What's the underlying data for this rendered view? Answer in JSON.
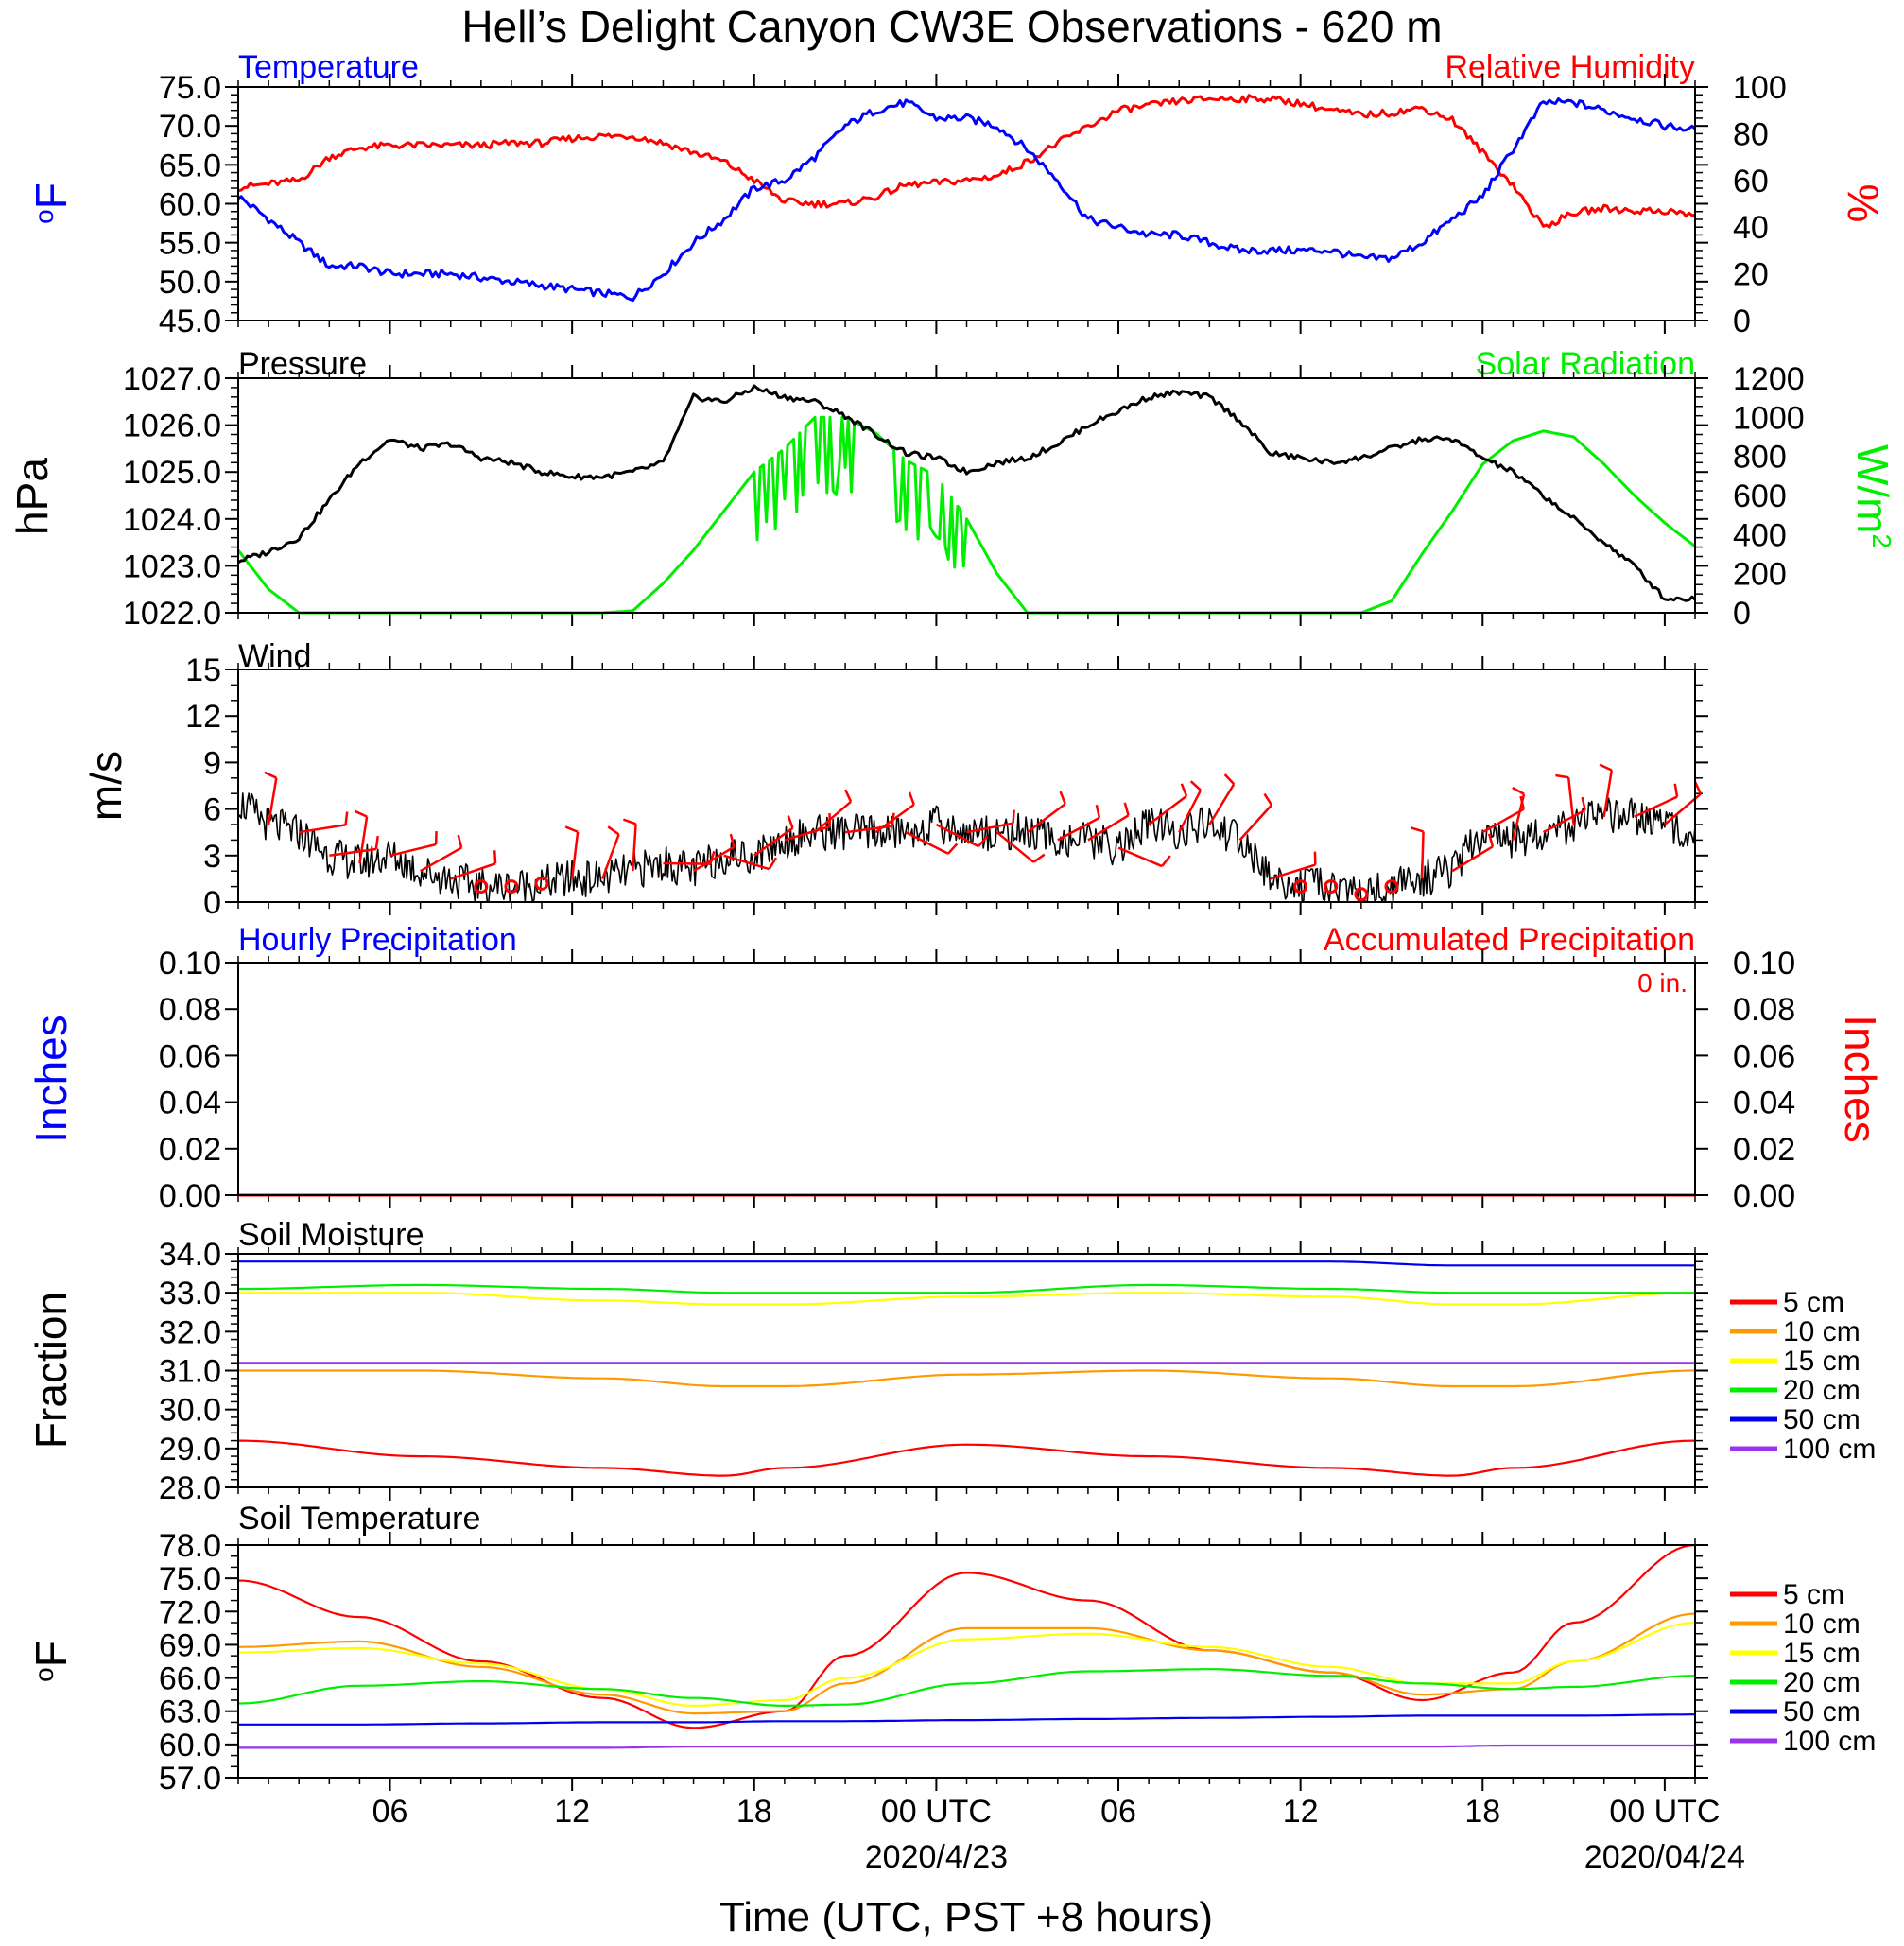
{
  "title": "Hell’s Delight Canyon CW3E Observations - 620 m",
  "x_axis": {
    "label": "Time (UTC, PST +8 hours)",
    "range_hours": [
      0,
      48
    ],
    "ticks": [
      {
        "hour": 5,
        "label": "06",
        "sublabel": ""
      },
      {
        "hour": 11,
        "label": "12",
        "sublabel": ""
      },
      {
        "hour": 17,
        "label": "18",
        "sublabel": ""
      },
      {
        "hour": 23,
        "label": "00 UTC",
        "sublabel": "2020/4/23"
      },
      {
        "hour": 29,
        "label": "06",
        "sublabel": ""
      },
      {
        "hour": 35,
        "label": "12",
        "sublabel": ""
      },
      {
        "hour": 41,
        "label": "18",
        "sublabel": ""
      },
      {
        "hour": 47,
        "label": "00 UTC",
        "sublabel": "2020/04/24"
      }
    ]
  },
  "colors": {
    "temperature": "#0000ff",
    "humidity": "#ff0000",
    "pressure": "#000000",
    "solar": "#00ee00",
    "wind": "#000000",
    "barbs": "#ff0000",
    "soil_5": "#ff0000",
    "soil_10": "#ff9900",
    "soil_15": "#ffff00",
    "soil_20": "#00ee00",
    "soil_50": "#0000ee",
    "soil_100": "#9933ee"
  },
  "panels": {
    "temp_rh": {
      "left_title": "Temperature",
      "right_title": "Relative Humidity",
      "left_ylabel": "oF",
      "right_ylabel": "%",
      "left_ticks": [
        "75.0",
        "70.0",
        "65.0",
        "60.0",
        "55.0",
        "50.0",
        "45.0"
      ],
      "right_ticks": [
        "100",
        "80",
        "60",
        "40",
        "20",
        "0"
      ]
    },
    "pressure_solar": {
      "left_title": "Pressure",
      "right_title": "Solar Radiation",
      "left_ylabel": "hPa",
      "right_ylabel": "W/m",
      "right_ylabel_sup": "2",
      "left_ticks": [
        "1027.0",
        "1026.0",
        "1025.0",
        "1024.0",
        "1023.0",
        "1022.0"
      ],
      "right_ticks": [
        "1200",
        "1000",
        "800",
        "600",
        "400",
        "200",
        "0"
      ]
    },
    "wind": {
      "left_title": "Wind",
      "left_ylabel": "m/s",
      "left_ticks": [
        "15",
        "12",
        "9",
        "6",
        "3",
        "0"
      ]
    },
    "precip": {
      "left_title": "Hourly Precipitation",
      "right_title": "Accumulated Precipitation",
      "total_label": "0 in.",
      "left_ylabel": "Inches",
      "right_ylabel": "Inches",
      "left_ticks": [
        "0.10",
        "0.08",
        "0.06",
        "0.04",
        "0.02",
        "0.00"
      ],
      "right_ticks": [
        "0.10",
        "0.08",
        "0.06",
        "0.04",
        "0.02",
        "0.00"
      ]
    },
    "soil_moisture": {
      "left_title": "Soil Moisture",
      "left_ylabel": "Fraction",
      "left_ticks": [
        "34.0",
        "33.0",
        "32.0",
        "31.0",
        "30.0",
        "29.0",
        "28.0"
      ],
      "legend": [
        "5 cm",
        "10 cm",
        "15 cm",
        "20 cm",
        "50 cm",
        "100 cm"
      ]
    },
    "soil_temp": {
      "left_title": "Soil Temperature",
      "left_ylabel": "oF",
      "left_ticks": [
        "78.0",
        "75.0",
        "72.0",
        "69.0",
        "66.0",
        "63.0",
        "60.0",
        "57.0"
      ],
      "legend": [
        "5 cm",
        "10 cm",
        "15 cm",
        "20 cm",
        "50 cm",
        "100 cm"
      ]
    }
  },
  "chart_data": [
    {
      "type": "line",
      "title": "Temperature / Relative Humidity",
      "xlabel": "Time (UTC, PST +8 hours)",
      "ylabel": "oF",
      "ylim": [
        45,
        75
      ],
      "y2label": "%",
      "y2lim": [
        0,
        100
      ],
      "x_hours": [
        0,
        2,
        3,
        4,
        5,
        6,
        7,
        8,
        9,
        10,
        11,
        12,
        13,
        14,
        15,
        16,
        17,
        18,
        19,
        20,
        21,
        22,
        23,
        24,
        25,
        26,
        27,
        28,
        29,
        30,
        31,
        32,
        33,
        34,
        35,
        36,
        37,
        38,
        39,
        40,
        41,
        42,
        43,
        44,
        45,
        46,
        47,
        48
      ],
      "series": [
        {
          "name": "Temperature",
          "axis": "left",
          "values": [
            61,
            55,
            52,
            52,
            51,
            51,
            51,
            50.5,
            50,
            49.5,
            49,
            48.5,
            48,
            51,
            55,
            58,
            62,
            63,
            66,
            70,
            72,
            73,
            71,
            71,
            70,
            67,
            63,
            58,
            57,
            56,
            56,
            55,
            54,
            54,
            54,
            54,
            53,
            53,
            55,
            58,
            61,
            67,
            73,
            73,
            72,
            71,
            70,
            69.5
          ]
        },
        {
          "name": "Relative Humidity",
          "axis": "right",
          "values": [
            57,
            60,
            70,
            74,
            75,
            75,
            75,
            75,
            76,
            76,
            78,
            79,
            79,
            76,
            72,
            68,
            60,
            51,
            50,
            50,
            53,
            58,
            59,
            60,
            62,
            68,
            76,
            83,
            90,
            92,
            94,
            95,
            95,
            95,
            93,
            90,
            88,
            89,
            91,
            86,
            72,
            58,
            40,
            46,
            48,
            47,
            47,
            45
          ]
        }
      ]
    },
    {
      "type": "line",
      "title": "Pressure / Solar Radiation",
      "xlabel": "Time (UTC, PST +8 hours)",
      "ylabel": "hPa",
      "ylim": [
        1022,
        1027
      ],
      "y2label": "W/m2",
      "y2lim": [
        0,
        1200
      ],
      "x_hours": [
        0,
        1,
        2,
        3,
        4,
        5,
        6,
        7,
        8,
        9,
        10,
        11,
        12,
        13,
        14,
        15,
        16,
        17,
        18,
        19,
        20,
        21,
        22,
        23,
        24,
        25,
        26,
        27,
        28,
        29,
        30,
        31,
        32,
        33,
        34,
        35,
        36,
        37,
        38,
        39,
        40,
        41,
        42,
        43,
        44,
        45,
        46,
        47,
        48
      ],
      "series": [
        {
          "name": "Pressure",
          "axis": "left",
          "values": [
            1023.1,
            1023.3,
            1023.6,
            1024.4,
            1025.2,
            1025.7,
            1025.5,
            1025.6,
            1025.3,
            1025.2,
            1025,
            1024.9,
            1024.9,
            1025,
            1025.2,
            1026.6,
            1026.5,
            1026.8,
            1026.6,
            1026.5,
            1026.2,
            1025.8,
            1025.4,
            1025.3,
            1025,
            1025.2,
            1025.3,
            1025.6,
            1026.0,
            1026.3,
            1026.6,
            1026.7,
            1026.6,
            1026.1,
            1025.4,
            1025.3,
            1025.2,
            1025.3,
            1025.5,
            1025.7,
            1025.7,
            1025.3,
            1025,
            1024.5,
            1024,
            1023.5,
            1023.0,
            1022.3,
            1022.3
          ]
        },
        {
          "name": "Solar Radiation",
          "axis": "right",
          "values": [
            320,
            120,
            0,
            0,
            0,
            0,
            0,
            0,
            0,
            0,
            0,
            0,
            0,
            10,
            150,
            320,
            520,
            720,
            840,
            1000,
            1000,
            920,
            780,
            700,
            480,
            200,
            0,
            0,
            0,
            0,
            0,
            0,
            0,
            0,
            0,
            0,
            0,
            0,
            60,
            300,
            520,
            760,
            880,
            930,
            900,
            760,
            600,
            460,
            340
          ]
        }
      ]
    },
    {
      "type": "line",
      "title": "Wind",
      "xlabel": "Time (UTC, PST +8 hours)",
      "ylabel": "m/s",
      "ylim": [
        0,
        15
      ],
      "x_hours": [
        0,
        1,
        2,
        3,
        4,
        5,
        6,
        7,
        8,
        9,
        10,
        11,
        12,
        13,
        14,
        15,
        16,
        17,
        18,
        19,
        20,
        21,
        22,
        23,
        24,
        25,
        26,
        27,
        28,
        29,
        30,
        31,
        32,
        33,
        34,
        35,
        36,
        37,
        38,
        39,
        40,
        41,
        42,
        43,
        44,
        45,
        46,
        47,
        48
      ],
      "series": [
        {
          "name": "Wind speed",
          "axis": "left",
          "values": [
            6.5,
            5,
            4.5,
            3,
            2.5,
            3,
            2,
            1.5,
            1,
            1,
            1.2,
            1.5,
            1.5,
            2,
            2.5,
            2,
            3,
            3,
            4,
            4.5,
            4.5,
            4.5,
            4.5,
            5,
            4.5,
            4.5,
            4.5,
            4,
            4,
            3.5,
            5,
            4.5,
            5,
            4,
            1.5,
            1,
            1,
            0.5,
            1,
            1.5,
            2,
            4.5,
            4,
            4.5,
            5,
            5.5,
            5.5,
            5,
            4.5
          ]
        }
      ]
    },
    {
      "type": "line",
      "title": "Hourly Precipitation / Accumulated Precipitation",
      "xlabel": "Time (UTC, PST +8 hours)",
      "ylabel": "Inches",
      "ylim": [
        0,
        0.1
      ],
      "y2label": "Inches",
      "y2lim": [
        0,
        0.1
      ],
      "x_hours": [
        0,
        48
      ],
      "series": [
        {
          "name": "Hourly Precipitation",
          "axis": "left",
          "values": [
            0,
            0
          ]
        },
        {
          "name": "Accumulated Precipitation",
          "axis": "right",
          "values": [
            0,
            0
          ]
        }
      ]
    },
    {
      "type": "line",
      "title": "Soil Moisture",
      "xlabel": "Time (UTC, PST +8 hours)",
      "ylabel": "Fraction",
      "ylim": [
        28,
        34
      ],
      "x_hours": [
        0,
        6,
        12,
        16,
        18,
        24,
        30,
        36,
        40,
        42,
        48
      ],
      "series": [
        {
          "name": "5 cm",
          "values": [
            29.2,
            28.8,
            28.5,
            28.3,
            28.5,
            29.1,
            28.8,
            28.5,
            28.3,
            28.5,
            29.2
          ]
        },
        {
          "name": "10 cm",
          "values": [
            31.0,
            31.0,
            30.8,
            30.6,
            30.6,
            30.9,
            31.0,
            30.8,
            30.6,
            30.6,
            31.0
          ]
        },
        {
          "name": "15 cm",
          "values": [
            33.0,
            33.0,
            32.8,
            32.7,
            32.7,
            32.9,
            33.0,
            32.9,
            32.7,
            32.7,
            33.0
          ]
        },
        {
          "name": "20 cm",
          "values": [
            33.1,
            33.2,
            33.1,
            33.0,
            33.0,
            33.0,
            33.2,
            33.1,
            33.0,
            33.0,
            33.0
          ]
        },
        {
          "name": "50 cm",
          "values": [
            33.8,
            33.8,
            33.8,
            33.8,
            33.8,
            33.8,
            33.8,
            33.8,
            33.7,
            33.7,
            33.7
          ]
        },
        {
          "name": "100 cm",
          "values": [
            31.2,
            31.2,
            31.2,
            31.2,
            31.2,
            31.2,
            31.2,
            31.2,
            31.2,
            31.2,
            31.2
          ]
        }
      ]
    },
    {
      "type": "line",
      "title": "Soil Temperature",
      "xlabel": "Time (UTC, PST +8 hours)",
      "ylabel": "oF",
      "ylim": [
        57,
        78
      ],
      "x_hours": [
        0,
        4,
        8,
        12,
        15,
        18,
        20,
        24,
        28,
        32,
        36,
        39,
        42,
        44,
        48
      ],
      "series": [
        {
          "name": "5 cm",
          "values": [
            74.8,
            71.5,
            67.5,
            64.2,
            61.5,
            63.0,
            68.0,
            75.5,
            73.0,
            68.5,
            66.5,
            64.0,
            66.5,
            71.0,
            78.0
          ]
        },
        {
          "name": "10 cm",
          "values": [
            68.8,
            69.3,
            67.0,
            64.5,
            62.8,
            63.0,
            65.5,
            70.5,
            70.5,
            68.5,
            66.5,
            64.5,
            65.0,
            67.5,
            71.8
          ]
        },
        {
          "name": "15 cm",
          "values": [
            68.3,
            68.7,
            67.3,
            65.0,
            63.5,
            64.0,
            66.0,
            69.5,
            70.0,
            68.8,
            67.0,
            65.5,
            65.5,
            67.5,
            71.0
          ]
        },
        {
          "name": "20 cm",
          "values": [
            63.7,
            65.3,
            65.7,
            65.0,
            64.2,
            63.5,
            63.6,
            65.5,
            66.6,
            66.8,
            66.2,
            65.5,
            65.0,
            65.2,
            66.2
          ]
        },
        {
          "name": "50 cm",
          "values": [
            61.8,
            61.8,
            61.9,
            62.0,
            62.0,
            62.1,
            62.1,
            62.2,
            62.3,
            62.4,
            62.5,
            62.6,
            62.6,
            62.6,
            62.7
          ]
        },
        {
          "name": "100 cm",
          "values": [
            59.7,
            59.7,
            59.7,
            59.7,
            59.8,
            59.8,
            59.8,
            59.8,
            59.8,
            59.8,
            59.8,
            59.8,
            59.9,
            59.9,
            59.9
          ]
        }
      ]
    }
  ]
}
